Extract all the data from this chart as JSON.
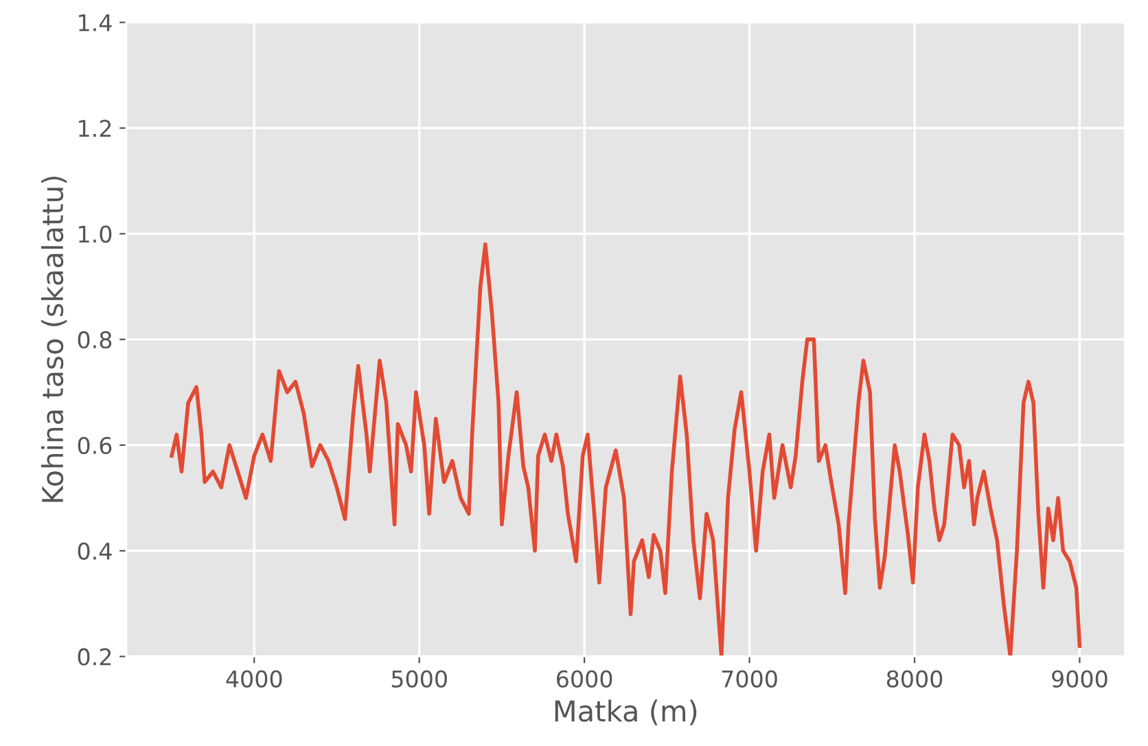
{
  "chart_data": {
    "type": "line",
    "xlabel": "Matka (m)",
    "ylabel": "Kohina taso (skaalattu)",
    "xlim": [
      3225,
      9275
    ],
    "xticks": [
      4000,
      5000,
      6000,
      7000,
      8000,
      9000
    ],
    "ylim": [
      0.2,
      1.4
    ],
    "yticks": [
      {
        "value": 0.2,
        "label": "0.2"
      },
      {
        "value": 0.4,
        "label": "0.4"
      },
      {
        "value": 0.6,
        "label": "0.6"
      },
      {
        "value": 0.8,
        "label": "0.8"
      },
      {
        "value": 1.0,
        "label": "1.0"
      },
      {
        "value": 1.2,
        "label": "1.2"
      },
      {
        "value": 1.4,
        "label": "1.4"
      }
    ],
    "grid": true,
    "legend": false,
    "series": [
      {
        "color": "#e24a33",
        "x": [
          3500,
          3530,
          3560,
          3600,
          3650,
          3680,
          3700,
          3750,
          3800,
          3850,
          3900,
          3950,
          4000,
          4050,
          4100,
          4150,
          4200,
          4250,
          4300,
          4350,
          4400,
          4450,
          4500,
          4550,
          4600,
          4630,
          4680,
          4700,
          4760,
          4800,
          4850,
          4870,
          4920,
          4950,
          4980,
          5030,
          5060,
          5100,
          5150,
          5200,
          5250,
          5300,
          5320,
          5370,
          5400,
          5440,
          5480,
          5500,
          5540,
          5590,
          5630,
          5660,
          5700,
          5720,
          5760,
          5800,
          5830,
          5870,
          5900,
          5950,
          5990,
          6020,
          6060,
          6090,
          6130,
          6190,
          6240,
          6280,
          6300,
          6350,
          6390,
          6420,
          6460,
          6490,
          6530,
          6580,
          6620,
          6660,
          6700,
          6740,
          6780,
          6800,
          6830,
          6870,
          6910,
          6950,
          7000,
          7040,
          7080,
          7120,
          7150,
          7200,
          7250,
          7280,
          7320,
          7350,
          7390,
          7420,
          7460,
          7490,
          7540,
          7580,
          7600,
          7660,
          7690,
          7730,
          7760,
          7790,
          7820,
          7880,
          7910,
          7960,
          7990,
          8020,
          8060,
          8090,
          8120,
          8150,
          8180,
          8230,
          8270,
          8300,
          8330,
          8360,
          8380,
          8420,
          8460,
          8500,
          8540,
          8580,
          8620,
          8660,
          8690,
          8720,
          8750,
          8780,
          8810,
          8840,
          8870,
          8900,
          8940,
          8980,
          9000
        ],
        "values": [
          0.58,
          0.62,
          0.55,
          0.68,
          0.71,
          0.62,
          0.53,
          0.55,
          0.52,
          0.6,
          0.55,
          0.5,
          0.58,
          0.62,
          0.57,
          0.74,
          0.7,
          0.72,
          0.66,
          0.56,
          0.6,
          0.57,
          0.52,
          0.46,
          0.66,
          0.75,
          0.62,
          0.55,
          0.76,
          0.68,
          0.45,
          0.64,
          0.6,
          0.55,
          0.7,
          0.6,
          0.47,
          0.65,
          0.53,
          0.57,
          0.5,
          0.47,
          0.62,
          0.9,
          0.98,
          0.85,
          0.68,
          0.45,
          0.58,
          0.7,
          0.56,
          0.52,
          0.4,
          0.58,
          0.62,
          0.57,
          0.62,
          0.56,
          0.47,
          0.38,
          0.58,
          0.62,
          0.47,
          0.34,
          0.52,
          0.59,
          0.5,
          0.28,
          0.38,
          0.42,
          0.35,
          0.43,
          0.4,
          0.32,
          0.55,
          0.73,
          0.62,
          0.42,
          0.31,
          0.47,
          0.42,
          0.33,
          0.2,
          0.5,
          0.63,
          0.7,
          0.55,
          0.4,
          0.55,
          0.62,
          0.5,
          0.6,
          0.52,
          0.58,
          0.72,
          0.8,
          0.8,
          0.57,
          0.6,
          0.54,
          0.45,
          0.32,
          0.45,
          0.68,
          0.76,
          0.7,
          0.46,
          0.33,
          0.39,
          0.6,
          0.55,
          0.43,
          0.34,
          0.52,
          0.62,
          0.57,
          0.48,
          0.42,
          0.45,
          0.62,
          0.6,
          0.52,
          0.57,
          0.45,
          0.5,
          0.55,
          0.48,
          0.42,
          0.3,
          0.2,
          0.4,
          0.68,
          0.72,
          0.68,
          0.47,
          0.33,
          0.48,
          0.42,
          0.5,
          0.4,
          0.38,
          0.33,
          0.22
        ]
      }
    ]
  }
}
